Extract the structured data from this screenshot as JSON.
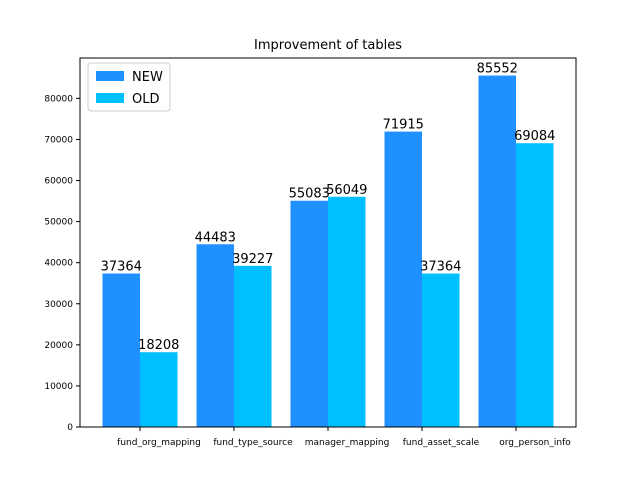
{
  "chart_data": {
    "type": "bar",
    "title": "Improvement of tables",
    "categories": [
      "fund_org_mapping",
      "fund_type_source",
      "manager_mapping",
      "fund_asset_scale",
      "org_person_info"
    ],
    "series": [
      {
        "name": "NEW",
        "color": "#1e90ff",
        "values": [
          37364,
          44483,
          55083,
          71915,
          85552
        ]
      },
      {
        "name": "OLD",
        "color": "#00bfff",
        "values": [
          18208,
          39227,
          56049,
          37364,
          69084
        ]
      }
    ],
    "yticks": [
      0,
      10000,
      20000,
      30000,
      40000,
      50000,
      60000,
      70000,
      80000
    ],
    "ylim": [
      0,
      89829
    ],
    "legend_position": "top-left",
    "grid": false
  }
}
